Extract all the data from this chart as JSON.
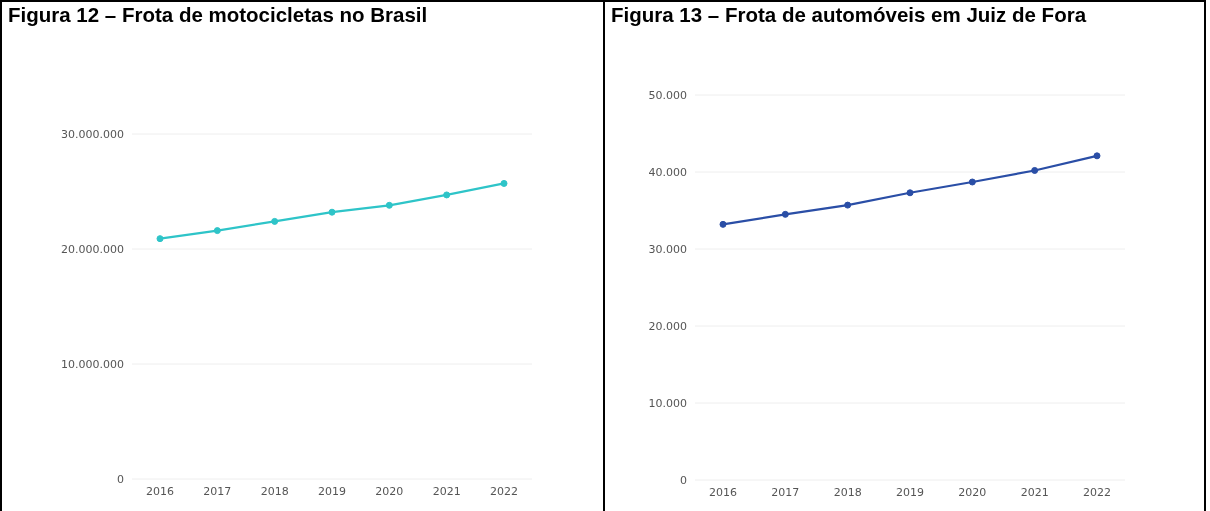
{
  "chart_data": [
    {
      "type": "line",
      "title": "Figura 12 – Frota de motocicletas no Brasil",
      "categories": [
        "2016",
        "2017",
        "2018",
        "2019",
        "2020",
        "2021",
        "2022"
      ],
      "series": [
        {
          "color": "#2ec4c8",
          "values": [
            20900000,
            21600000,
            22400000,
            23200000,
            23800000,
            24700000,
            25700000
          ]
        }
      ],
      "ylim": [
        0,
        30000000
      ],
      "yticks": [
        {
          "value": 0,
          "label": "0"
        },
        {
          "value": 10000000,
          "label": "10.000.000"
        },
        {
          "value": 20000000,
          "label": "20.000.000"
        },
        {
          "value": 30000000,
          "label": "30.000.000"
        }
      ],
      "grid": "y",
      "marker": "circle"
    },
    {
      "type": "line",
      "title": "Figura 13 – Frota de automóveis em Juiz de Fora",
      "categories": [
        "2016",
        "2017",
        "2018",
        "2019",
        "2020",
        "2021",
        "2022"
      ],
      "series": [
        {
          "color": "#2a4ea6",
          "values": [
            33200,
            34500,
            35700,
            37300,
            38700,
            40200,
            42100
          ]
        }
      ],
      "ylim": [
        0,
        50000
      ],
      "yticks": [
        {
          "value": 0,
          "label": "0"
        },
        {
          "value": 10000,
          "label": "10.000"
        },
        {
          "value": 20000,
          "label": "20.000"
        },
        {
          "value": 30000,
          "label": "30.000"
        },
        {
          "value": 40000,
          "label": "40.000"
        },
        {
          "value": 50000,
          "label": "50.000"
        }
      ],
      "grid": "y",
      "marker": "circle"
    }
  ]
}
